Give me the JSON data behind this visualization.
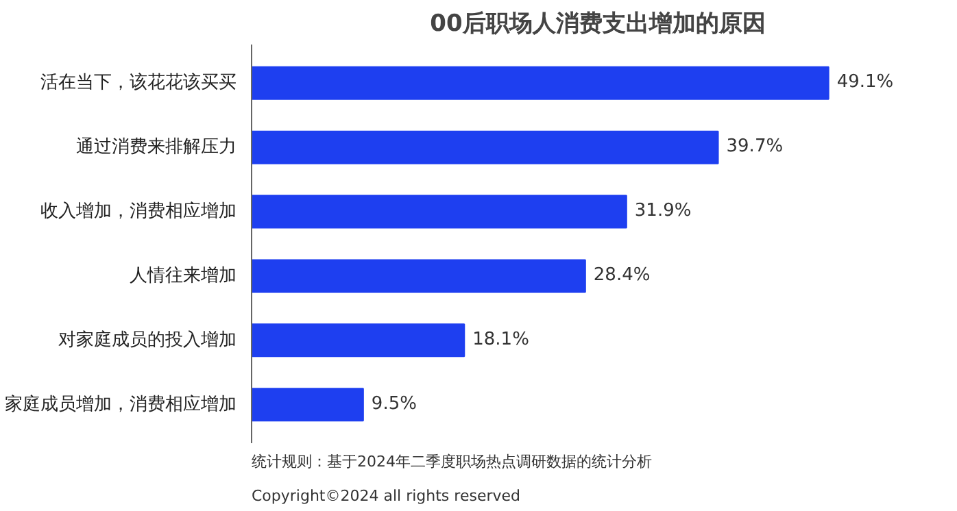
{
  "chart_data": {
    "type": "bar",
    "orientation": "horizontal",
    "title": "00后职场人消费支出增加的原因",
    "categories": [
      "活在当下，该花花该买买",
      "通过消费来排解压力",
      "收入增加，消费相应增加",
      "人情往来增加",
      "对家庭成员的投入增加",
      "家庭成员增加，消费相应增加"
    ],
    "values": [
      49.1,
      39.7,
      31.9,
      28.4,
      18.1,
      9.5
    ],
    "value_labels": [
      "49.1%",
      "39.7%",
      "31.9%",
      "28.4%",
      "18.1%",
      "9.5%"
    ],
    "color": "#1e3ff0",
    "grid": false,
    "annotations": [
      "统计规则：基于2024年二季度职场热点调研数据的统计分析",
      "Copyright©2024 all rights reserved"
    ]
  }
}
